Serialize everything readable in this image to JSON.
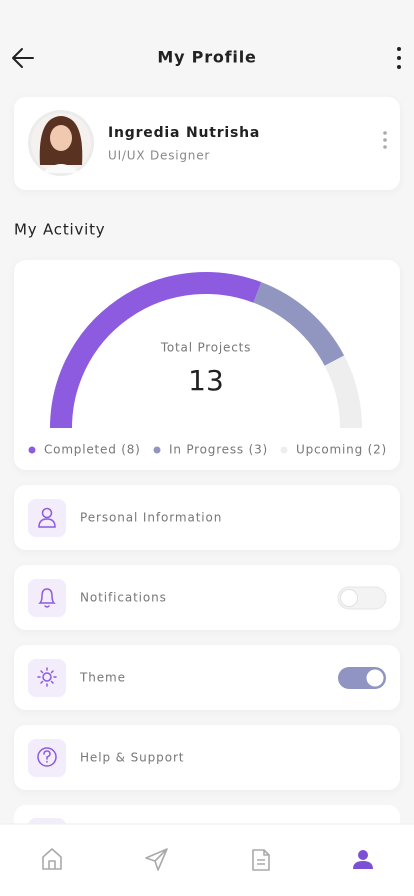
{
  "header": {
    "title": "My Profile"
  },
  "profile": {
    "name": "Ingredia Nutrisha",
    "role": "UI/UX Designer"
  },
  "section_title": "My Activity",
  "chart_data": {
    "type": "gauge",
    "total_label": "Total Projects",
    "total": 13,
    "categories": [
      "Completed (8)",
      "In Progress (3)",
      "Upcoming (2)"
    ],
    "values": [
      8,
      3,
      2
    ],
    "colors": [
      "#8c5be0",
      "#9196c0",
      "#eeeeee"
    ]
  },
  "menu": [
    {
      "label": "Personal Information"
    },
    {
      "label": "Notifications",
      "toggle": false
    },
    {
      "label": "Theme",
      "toggle": true
    },
    {
      "label": "Help & Support"
    }
  ]
}
